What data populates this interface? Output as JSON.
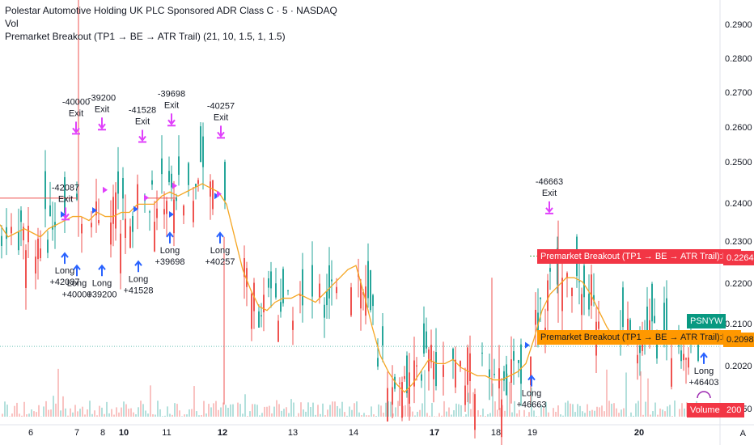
{
  "header": {
    "title": "Polestar Automotive Holding UK PLC Sponsored ADR Class C · 5 · NASDAQ",
    "vol_label": "Vol",
    "indicator": "Premarket Breakout (TP1 → BE → ATR Trail) (21, 10, 1.5, 1, 1.5)"
  },
  "price_axis": [
    "0.2900",
    "0.2800",
    "0.2700",
    "0.2600",
    "0.2500",
    "0.2400",
    "0.2300",
    "0.2200",
    "0.2100",
    "0.2020",
    "0.1950"
  ],
  "time_axis": [
    "6",
    "7",
    "8",
    "10",
    "11",
    "12",
    "13",
    "14",
    "17",
    "18",
    "19",
    "20"
  ],
  "tags": {
    "plot_red": "Premarket Breakout (TP1 → BE → ATR Trail):Plot",
    "price_red": "0.2264",
    "symbol": "PSNYW",
    "plot_orange": "Premarket Breakout (TP1 → BE → ATR Trail):Plot",
    "price_orange": "0.2098",
    "volume_label": "Volume",
    "volume_value": "200"
  },
  "auto_button": "A",
  "annotations": {
    "exits": [
      {
        "pnl": "-40000",
        "label": "Exit"
      },
      {
        "pnl": "-39200",
        "label": "Exit"
      },
      {
        "pnl": "-41528",
        "label": "Exit"
      },
      {
        "pnl": "-39698",
        "label": "Exit"
      },
      {
        "pnl": "-40257",
        "label": "Exit"
      },
      {
        "pnl": "-42087",
        "label": "Exit"
      },
      {
        "pnl": "-46663",
        "label": "Exit"
      }
    ],
    "longs": [
      {
        "label": "Long",
        "pnl": "+42087"
      },
      {
        "label": "Long",
        "pnl": "+40000"
      },
      {
        "label": "Long",
        "pnl": "+39200"
      },
      {
        "label": "Long",
        "pnl": "+41528"
      },
      {
        "label": "Long",
        "pnl": "+39698"
      },
      {
        "label": "Long",
        "pnl": "+40257"
      },
      {
        "label": "Long",
        "pnl": "+46663"
      },
      {
        "label": "Long",
        "pnl": "+46403"
      }
    ]
  },
  "colors": {
    "up": "#26a69a",
    "down": "#ef5350",
    "atr": "#f5a623",
    "exit_marker": "#e040fb",
    "long_marker": "#2962ff",
    "price_red_bg": "#f23645",
    "price_orange_bg": "#ff9800",
    "symbol_bg": "#089981"
  },
  "chart_data": {
    "type": "candlestick",
    "title": "Polestar Automotive Holding UK PLC Sponsored ADR Class C · 5 · NASDAQ",
    "ylim": [
      0.192,
      0.292
    ],
    "x_ticks": [
      "6",
      "7",
      "8",
      "10",
      "11",
      "12",
      "13",
      "14",
      "17",
      "18",
      "19",
      "20"
    ],
    "y_ticks": [
      0.29,
      0.28,
      0.27,
      0.26,
      0.25,
      0.24,
      0.23,
      0.22,
      0.21,
      0.202,
      0.195
    ],
    "trail_points": [
      [
        0,
        0.239
      ],
      [
        10,
        0.236
      ],
      [
        20,
        0.237
      ],
      [
        30,
        0.238
      ],
      [
        40,
        0.237
      ],
      [
        50,
        0.236
      ],
      [
        60,
        0.238
      ],
      [
        70,
        0.239
      ],
      [
        80,
        0.24
      ],
      [
        90,
        0.241
      ],
      [
        100,
        0.241
      ],
      [
        110,
        0.24
      ],
      [
        120,
        0.242
      ],
      [
        130,
        0.241
      ],
      [
        140,
        0.241
      ],
      [
        150,
        0.242
      ],
      [
        160,
        0.242
      ],
      [
        170,
        0.244
      ],
      [
        180,
        0.244
      ],
      [
        190,
        0.244
      ],
      [
        200,
        0.246
      ],
      [
        210,
        0.247
      ],
      [
        220,
        0.246
      ],
      [
        230,
        0.247
      ],
      [
        240,
        0.248
      ],
      [
        250,
        0.249
      ],
      [
        260,
        0.248
      ],
      [
        270,
        0.247
      ],
      [
        280,
        0.244
      ],
      [
        290,
        0.236
      ],
      [
        300,
        0.228
      ],
      [
        310,
        0.223
      ],
      [
        320,
        0.219
      ],
      [
        330,
        0.218
      ],
      [
        340,
        0.22
      ],
      [
        350,
        0.221
      ],
      [
        360,
        0.221
      ],
      [
        370,
        0.222
      ],
      [
        380,
        0.221
      ],
      [
        390,
        0.22
      ],
      [
        400,
        0.222
      ],
      [
        410,
        0.224
      ],
      [
        420,
        0.226
      ],
      [
        430,
        0.228
      ],
      [
        440,
        0.229
      ],
      [
        450,
        0.222
      ],
      [
        460,
        0.214
      ],
      [
        470,
        0.207
      ],
      [
        480,
        0.203
      ],
      [
        490,
        0.2
      ],
      [
        500,
        0.198
      ],
      [
        510,
        0.2
      ],
      [
        520,
        0.203
      ],
      [
        530,
        0.206
      ],
      [
        540,
        0.205
      ],
      [
        550,
        0.205
      ],
      [
        560,
        0.206
      ],
      [
        570,
        0.204
      ],
      [
        580,
        0.203
      ],
      [
        590,
        0.202
      ],
      [
        600,
        0.202
      ],
      [
        610,
        0.201
      ],
      [
        620,
        0.201
      ],
      [
        630,
        0.202
      ],
      [
        640,
        0.203
      ],
      [
        650,
        0.205
      ],
      [
        660,
        0.211
      ],
      [
        670,
        0.218
      ],
      [
        680,
        0.222
      ],
      [
        690,
        0.224
      ],
      [
        700,
        0.226
      ],
      [
        710,
        0.226
      ],
      [
        720,
        0.225
      ],
      [
        730,
        0.222
      ],
      [
        740,
        0.218
      ],
      [
        750,
        0.214
      ],
      [
        760,
        0.211
      ],
      [
        770,
        0.21
      ],
      [
        780,
        0.211
      ],
      [
        790,
        0.212
      ],
      [
        800,
        0.212
      ],
      [
        810,
        0.212
      ],
      [
        820,
        0.211
      ],
      [
        830,
        0.211
      ],
      [
        840,
        0.21
      ],
      [
        850,
        0.21
      ],
      [
        860,
        0.2098
      ]
    ],
    "last_price": 0.2098,
    "plot_value": 0.2264
  }
}
